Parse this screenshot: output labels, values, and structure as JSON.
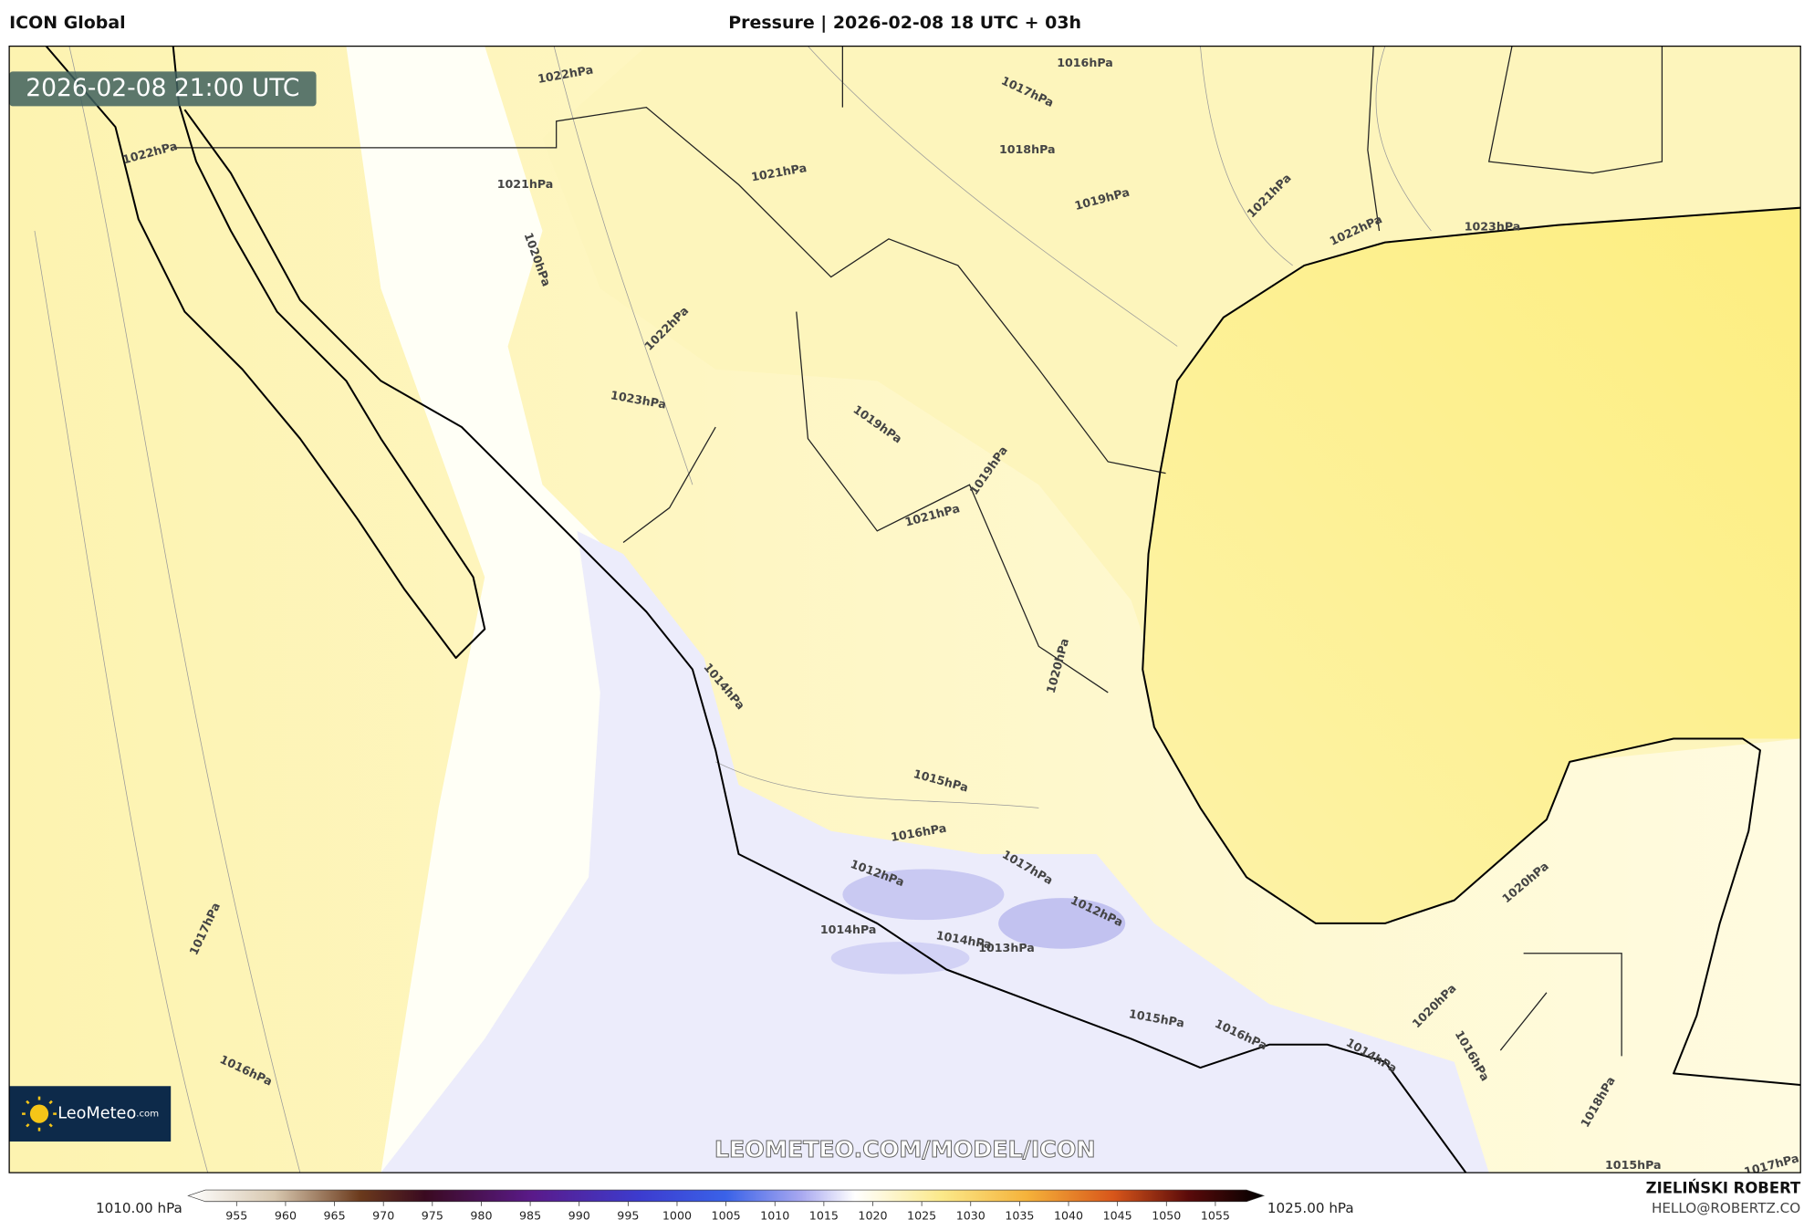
{
  "header": {
    "model": "ICON Global",
    "title": "Pressure | 2026-02-08 18 UTC + 03h"
  },
  "map": {
    "valid_time": "2026-02-08 21:00 UTC",
    "contour_labels": [
      "1022hPa",
      "1016hPa",
      "1017hPa",
      "1018hPa",
      "1022hPa",
      "1021hPa",
      "1021hPa",
      "1019hPa",
      "1021hPa",
      "1022hPa",
      "1023hPa",
      "1020hPa",
      "1022hPa",
      "1023hPa",
      "1019hPa",
      "1019hPa",
      "1021hPa",
      "1020hPa",
      "1014hPa",
      "1015hPa",
      "1016hPa",
      "1017hPa",
      "1012hPa",
      "1012hPa",
      "1014hPa",
      "1014hPa",
      "1013hPa",
      "1017hPa",
      "1015hPa",
      "1016hPa",
      "1014hPa",
      "1020hPa",
      "1016hPa",
      "1020hPa",
      "1016hPa",
      "1018hPa",
      "1015hPa",
      "1017hPa"
    ],
    "logo": "LeoMeteo",
    "logo_suffix": ".com",
    "watermark": "LEOMETEO.COM/MODEL/ICON"
  },
  "colorbar": {
    "min_label": "1010.00 hPa",
    "max_label": "1025.00 hPa",
    "ticks": [
      955,
      960,
      965,
      970,
      975,
      980,
      985,
      990,
      995,
      1000,
      1005,
      1010,
      1015,
      1020,
      1025,
      1030,
      1035,
      1040,
      1045,
      1050,
      1055
    ]
  },
  "credits": {
    "author": "ZIELIŃSKI ROBERT",
    "email": "HELLO@ROBERTZ.CO"
  }
}
